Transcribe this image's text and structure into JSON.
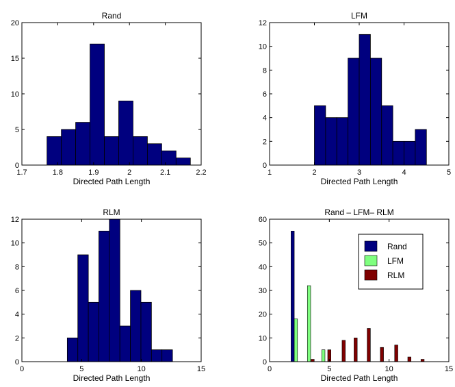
{
  "figure": {
    "colors": {
      "bar_blue": "#00007f",
      "bar_green": "#7fff7f",
      "bar_red": "#7f0000",
      "axes_bg": "#ffffff",
      "axis_line": "#000000"
    }
  },
  "chart_data": [
    {
      "type": "bar",
      "title": "Rand",
      "xlabel": "Directed Path Length",
      "ylabel": "",
      "xlim": [
        1.7,
        2.2
      ],
      "ylim": [
        0,
        20
      ],
      "xticks": [
        1.7,
        1.8,
        1.9,
        2.0,
        2.1,
        2.2
      ],
      "xtick_labels": [
        "1.7",
        "1.8",
        "1.9",
        "2",
        "2.1",
        "2.2"
      ],
      "yticks": [
        0,
        5,
        10,
        15,
        20
      ],
      "ytick_labels": [
        "0",
        "5",
        "10",
        "15",
        "20"
      ],
      "bin_edges": [
        1.77,
        1.81,
        1.85,
        1.89,
        1.93,
        1.97,
        2.01,
        2.05,
        2.09,
        2.13,
        2.17
      ],
      "values": [
        4,
        5,
        6,
        17,
        4,
        9,
        4,
        3,
        2,
        1
      ],
      "grid": false
    },
    {
      "type": "bar",
      "title": "LFM",
      "xlabel": "Directed Path Length",
      "ylabel": "",
      "xlim": [
        1,
        5
      ],
      "ylim": [
        0,
        12
      ],
      "xticks": [
        1,
        2,
        3,
        4,
        5
      ],
      "xtick_labels": [
        "1",
        "2",
        "3",
        "4",
        "5"
      ],
      "yticks": [
        0,
        2,
        4,
        6,
        8,
        10,
        12
      ],
      "ytick_labels": [
        "0",
        "2",
        "4",
        "6",
        "8",
        "10",
        "12"
      ],
      "bin_edges": [
        2.0,
        2.25,
        2.5,
        2.75,
        3.0,
        3.25,
        3.5,
        3.75,
        4.0,
        4.25,
        4.5
      ],
      "values": [
        5,
        4,
        4,
        9,
        11,
        9,
        5,
        2,
        2,
        3
      ],
      "grid": false
    },
    {
      "type": "bar",
      "title": "RLM",
      "xlabel": "Directed Path Length",
      "ylabel": "",
      "xlim": [
        0,
        15
      ],
      "ylim": [
        0,
        12
      ],
      "xticks": [
        0,
        5,
        10,
        15
      ],
      "xtick_labels": [
        "0",
        "5",
        "10",
        "15"
      ],
      "yticks": [
        0,
        2,
        4,
        6,
        8,
        10,
        12
      ],
      "ytick_labels": [
        "0",
        "2",
        "4",
        "6",
        "8",
        "10",
        "12"
      ],
      "bin_edges": [
        3.8,
        4.68,
        5.56,
        6.44,
        7.32,
        8.2,
        9.08,
        9.96,
        10.84,
        11.72,
        12.6
      ],
      "values": [
        2,
        9,
        5,
        11,
        12,
        3,
        6,
        5,
        1,
        1
      ],
      "grid": false
    },
    {
      "type": "bar",
      "title": "Rand – LFM– RLM",
      "xlabel": "Directed Path Length",
      "ylabel": "",
      "xlim": [
        0,
        15
      ],
      "ylim": [
        0,
        60
      ],
      "xticks": [
        0,
        5,
        10,
        15
      ],
      "xtick_labels": [
        "0",
        "5",
        "10",
        "15"
      ],
      "yticks": [
        0,
        10,
        20,
        30,
        40,
        50,
        60
      ],
      "ytick_labels": [
        "0",
        "10",
        "20",
        "30",
        "40",
        "50",
        "60"
      ],
      "legend_position": "top-right",
      "bar_width": 0.27,
      "series": [
        {
          "name": "Rand",
          "color": "#00007f",
          "points": [
            [
              1.93,
              55
            ],
            [
              2.2,
              0
            ]
          ]
        },
        {
          "name": "LFM",
          "color": "#7fff7f",
          "points": [
            [
              2.2,
              18
            ],
            [
              3.3,
              32
            ],
            [
              4.5,
              5
            ]
          ]
        },
        {
          "name": "RLM",
          "color": "#7f0000",
          "points": [
            [
              3.6,
              1
            ],
            [
              5.0,
              5
            ],
            [
              6.2,
              9
            ],
            [
              7.2,
              10
            ],
            [
              8.3,
              14
            ],
            [
              9.4,
              6
            ],
            [
              10.6,
              7
            ],
            [
              11.7,
              2
            ],
            [
              12.8,
              1
            ]
          ]
        }
      ],
      "grid": false
    }
  ]
}
